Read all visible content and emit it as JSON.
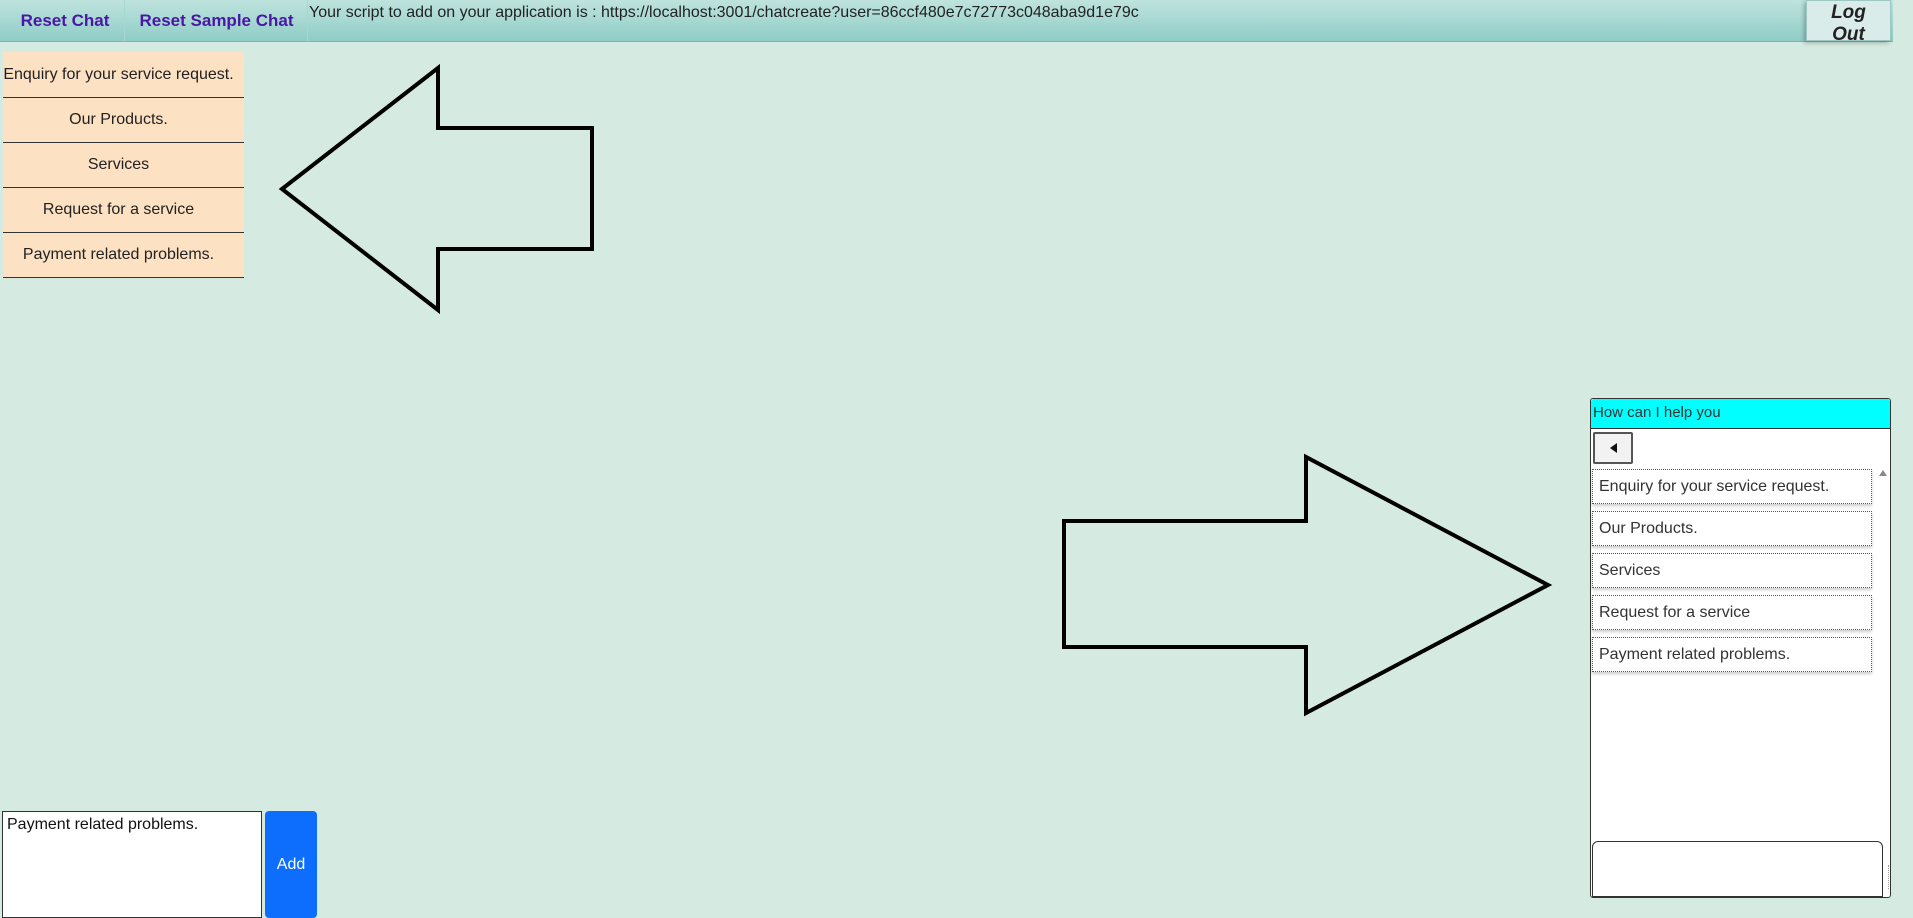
{
  "topbar": {
    "reset_chat_label": "Reset Chat",
    "reset_sample_chat_label": "Reset Sample Chat",
    "script_text": "Your script to add on your application is : https://localhost:3001/chatcreate?user=86ccf480e7c72773c048aba9d1e79c",
    "logout_label": "Log Out"
  },
  "left_menu": {
    "items": [
      {
        "label": "Enquiry for your service request."
      },
      {
        "label": "Our Products."
      },
      {
        "label": "Services"
      },
      {
        "label": "Request for a service"
      },
      {
        "label": "Payment related problems."
      }
    ]
  },
  "chat_widget": {
    "header": "How can I help you",
    "options": [
      {
        "label": "Enquiry for your service request."
      },
      {
        "label": "Our Products."
      },
      {
        "label": "Services"
      },
      {
        "label": "Request for a service"
      },
      {
        "label": "Payment related problems."
      }
    ],
    "input_value": ""
  },
  "bottom_editor": {
    "textarea_value": "Payment related problems.",
    "add_label": "Add"
  },
  "colors": {
    "background": "#d5eae0",
    "menu_item_bg": "#fde1c3",
    "chat_header_bg": "#00ffff",
    "add_button_bg": "#0d6efd",
    "topbar_link": "#4b16a6"
  }
}
